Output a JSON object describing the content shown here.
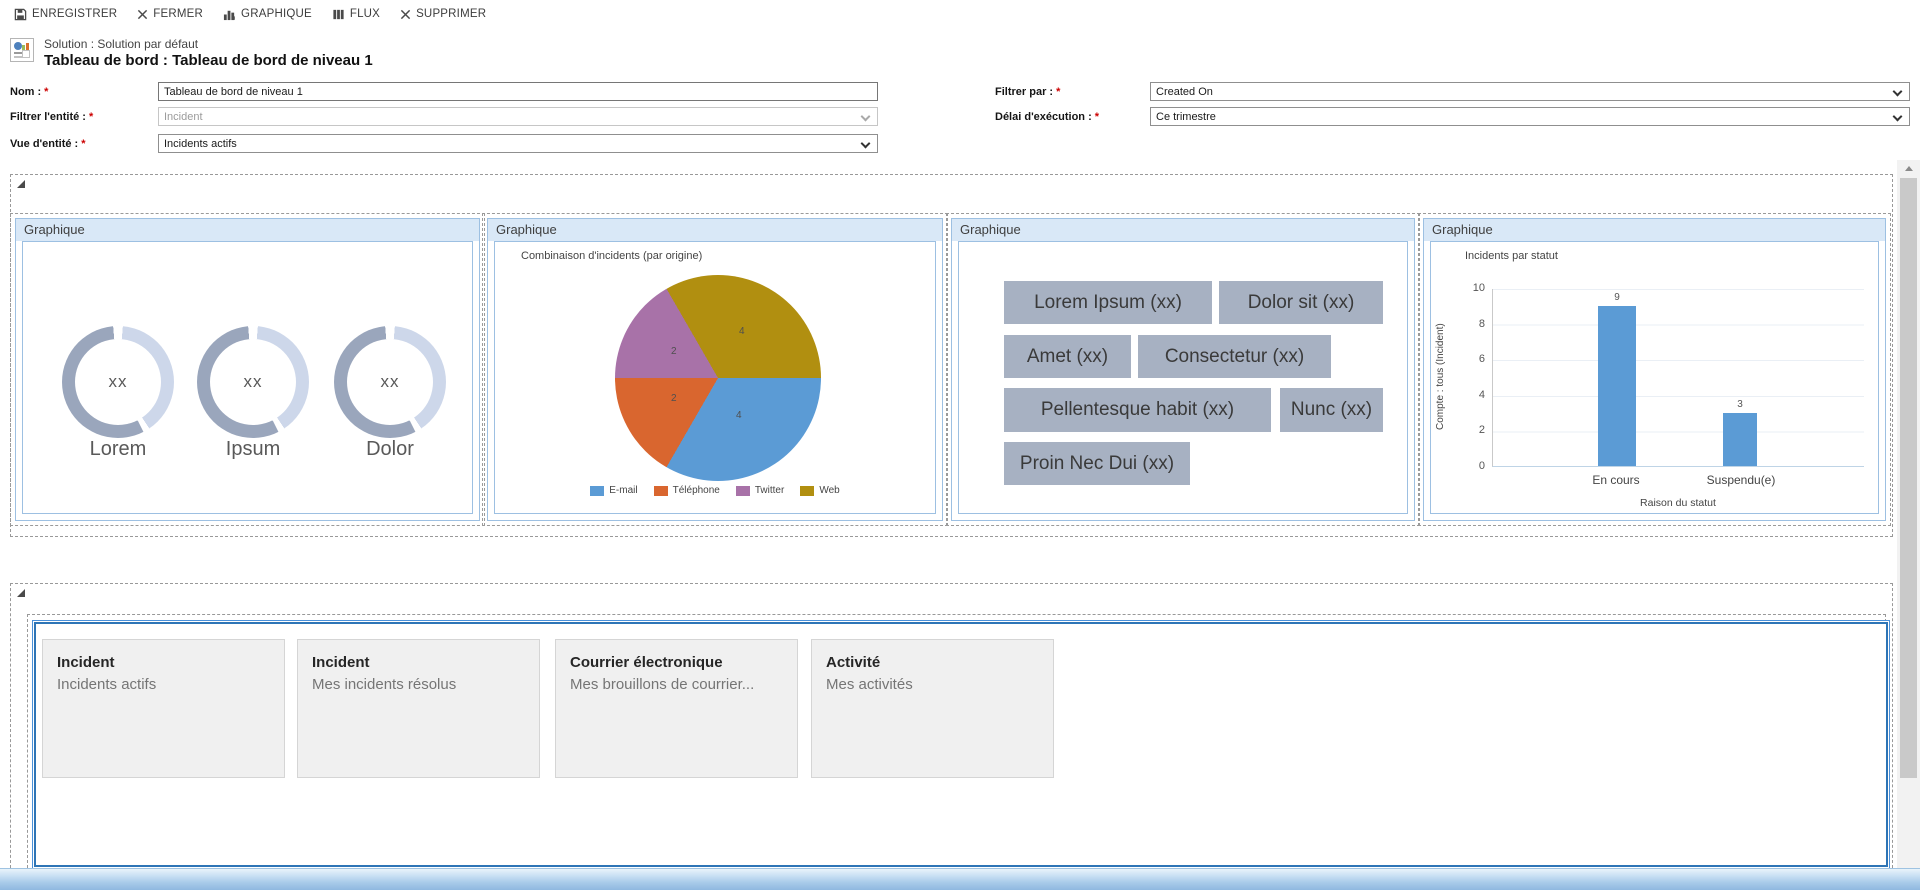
{
  "toolbar": {
    "save": "ENREGISTRER",
    "close": "FERMER",
    "chart": "GRAPHIQUE",
    "flux": "FLUX",
    "delete": "SUPPRIMER"
  },
  "header": {
    "solution_line": "Solution : Solution par défaut",
    "title": "Tableau de bord : Tableau de bord de niveau 1"
  },
  "form": {
    "required": "*",
    "nom": {
      "label": "Nom :",
      "value": "Tableau de bord de niveau 1"
    },
    "filtrer_entite": {
      "label": "Filtrer l'entité :",
      "value": "Incident"
    },
    "vue_entite": {
      "label": "Vue d'entité :",
      "value": "Incidents actifs"
    },
    "filtrer_par": {
      "label": "Filtrer par :",
      "value": "Created On"
    },
    "delai_execution": {
      "label": "Délai d'exécution :",
      "value": "Ce trimestre"
    }
  },
  "panels": {
    "header_label": "Graphique",
    "gauges": {
      "items": [
        {
          "value": "xx",
          "label": "Lorem"
        },
        {
          "value": "xx",
          "label": "Ipsum"
        },
        {
          "value": "xx",
          "label": "Dolor"
        }
      ]
    },
    "tags": {
      "items": [
        "Lorem Ipsum (xx)",
        "Dolor sit (xx)",
        "Amet (xx)",
        "Consectetur (xx)",
        "Pellentesque habit (xx)",
        "Nunc (xx)",
        "Proin Nec Dui (xx)"
      ]
    }
  },
  "chart_data": [
    {
      "type": "pie",
      "title": "Combinaison d'incidents (par origine)",
      "slices": [
        {
          "label": "Web",
          "value": 4,
          "color": "#B18F10"
        },
        {
          "label": "E-mail",
          "value": 4,
          "color": "#5B9BD5"
        },
        {
          "label": "Téléphone",
          "value": 2,
          "color": "#D9662F"
        },
        {
          "label": "Twitter",
          "value": 2,
          "color": "#A872A8"
        }
      ],
      "start_angle_deg": -30,
      "legend": [
        {
          "label": "E-mail",
          "color": "#5B9BD5"
        },
        {
          "label": "Téléphone",
          "color": "#D9662F"
        },
        {
          "label": "Twitter",
          "color": "#A872A8"
        },
        {
          "label": "Web",
          "color": "#B18F10"
        }
      ],
      "legend_position": "bottom"
    },
    {
      "type": "bar",
      "title": "Incidents par statut",
      "categories": [
        "En cours",
        "Suspendu(e)"
      ],
      "values": [
        9,
        3
      ],
      "xlabel": "Raison du statut",
      "ylabel": "Compte : tous (Incident)",
      "ylim": [
        0,
        10
      ],
      "yticks": [
        10,
        8,
        6,
        4,
        2,
        0
      ],
      "bar_color": "#5B9BD5"
    }
  ],
  "bottom": {
    "tiles": [
      {
        "title": "Incident",
        "subtitle": "Incidents actifs"
      },
      {
        "title": "Incident",
        "subtitle": "Mes incidents résolus"
      },
      {
        "title": "Courrier électronique",
        "subtitle": "Mes brouillons de courrier..."
      },
      {
        "title": "Activité",
        "subtitle": "Mes activités"
      }
    ]
  },
  "colors": {
    "accent_blue": "#5B9BD5",
    "selection_blue": "#2E75B6",
    "panel_header_bg": "#D9E8F7",
    "tag_bg": "#A7B1C2",
    "gauge_dark": "#9AA6BC",
    "gauge_light": "#CDD7EA"
  }
}
